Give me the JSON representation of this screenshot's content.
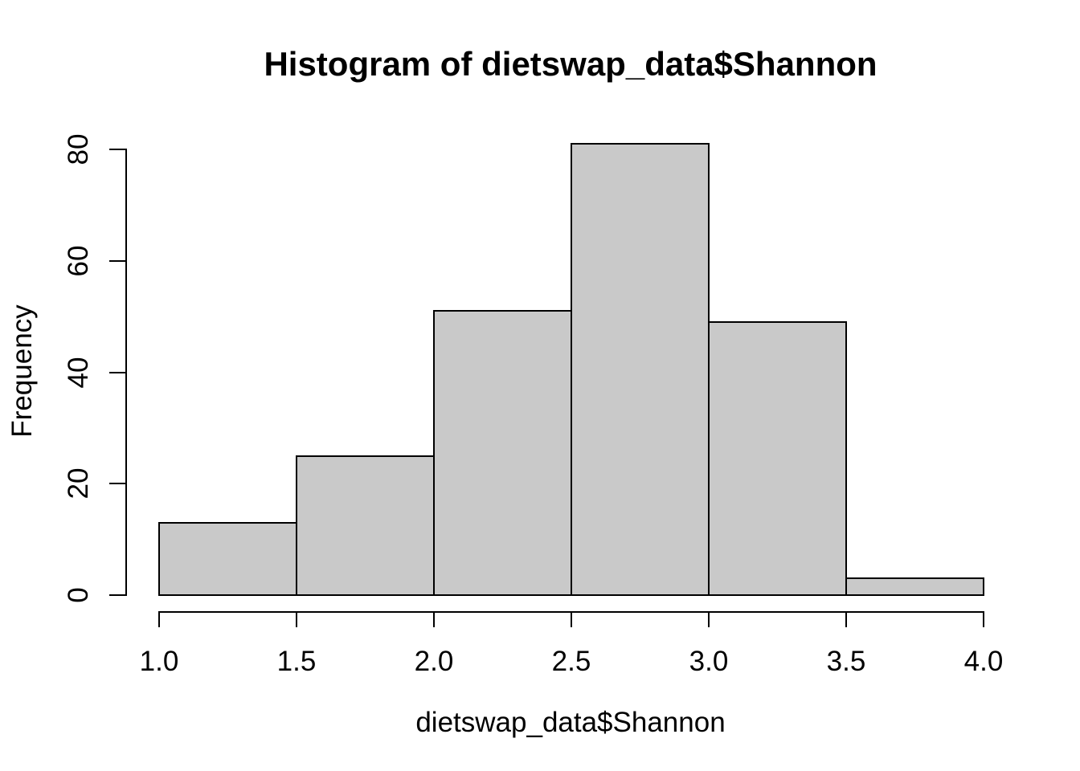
{
  "chart_data": {
    "type": "bar",
    "subtype": "histogram",
    "title": "Histogram of dietswap_data$Shannon",
    "xlabel": "dietswap_data$Shannon",
    "ylabel": "Frequency",
    "bin_edges": [
      1.0,
      1.5,
      2.0,
      2.5,
      3.0,
      3.5,
      4.0
    ],
    "counts": [
      13,
      25,
      51,
      81,
      49,
      3
    ],
    "x_ticks": [
      "1.0",
      "1.5",
      "2.0",
      "2.5",
      "3.0",
      "3.5",
      "4.0"
    ],
    "x_tick_values": [
      1.0,
      1.5,
      2.0,
      2.5,
      3.0,
      3.5,
      4.0
    ],
    "y_ticks": [
      "0",
      "20",
      "40",
      "60",
      "80"
    ],
    "y_tick_values": [
      0,
      20,
      40,
      60,
      80
    ],
    "xlim": [
      1.0,
      4.0
    ],
    "ylim": [
      0,
      80
    ],
    "grid": false,
    "legend": false,
    "bar_fill": "#c9c9c9",
    "bar_stroke": "#000000",
    "background": "#ffffff",
    "text_color": "#000000"
  }
}
